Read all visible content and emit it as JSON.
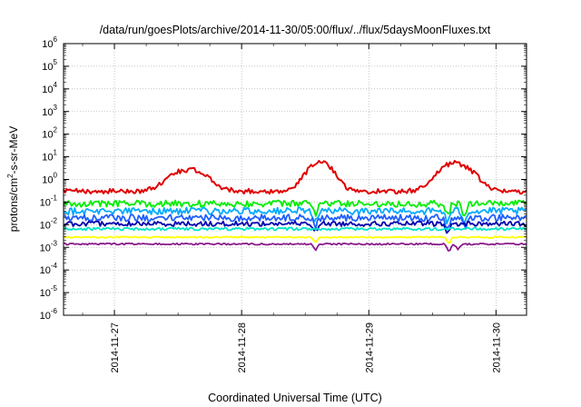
{
  "chart_data": {
    "type": "line",
    "title": "/data/run/goesPlots/archive/2014-11-30/05:00/flux/../flux/5daysMoonFluxes.txt",
    "xlabel": "Coordinated Universal Time (UTC)",
    "ylabel_parts": {
      "pre": "protons/cm",
      "sup": "2",
      "post": "-s-sr-MeV"
    },
    "yscale": "log",
    "ylim_exp": [
      -6,
      6
    ],
    "y_tick_exponents": [
      "-6",
      "-5",
      "-4",
      "-3",
      "-2",
      "-1",
      "0",
      "1",
      "2",
      "3",
      "4",
      "5",
      "6"
    ],
    "y_tick_base": "10",
    "x_range_days": [
      26.6,
      30.24
    ],
    "x_ticks": [
      {
        "day": 27,
        "label": "2014-11-27"
      },
      {
        "day": 28,
        "label": "2014-11-28"
      },
      {
        "day": 29,
        "label": "2014-11-29"
      },
      {
        "day": 30,
        "label": "2014-11-30"
      }
    ],
    "grid": true,
    "legend": "none",
    "series": [
      {
        "color": "#e00000",
        "base": 0.3,
        "noise": 0.22,
        "bumps": [
          [
            27.58,
            2.7,
            0.16
          ],
          [
            28.62,
            5.5,
            0.11
          ],
          [
            29.68,
            5.2,
            0.14
          ]
        ],
        "dips": []
      },
      {
        "color": "#00ee00",
        "base": 0.085,
        "noise": 0.3,
        "bumps": [],
        "dips": [
          [
            28.58,
            0.35
          ],
          [
            29.62,
            0.25
          ],
          [
            29.75,
            0.3
          ]
        ]
      },
      {
        "color": "#00aaff",
        "base": 0.04,
        "noise": 0.32,
        "bumps": [],
        "dips": [
          [
            28.58,
            0.35
          ],
          [
            29.62,
            0.3
          ],
          [
            29.75,
            0.35
          ]
        ]
      },
      {
        "color": "#1f5fff",
        "base": 0.02,
        "noise": 0.3,
        "bumps": [],
        "dips": [
          [
            28.58,
            0.4
          ],
          [
            29.62,
            0.3
          ],
          [
            29.76,
            0.35
          ]
        ]
      },
      {
        "color": "#0000b0",
        "base": 0.011,
        "noise": 0.22,
        "bumps": [],
        "dips": [
          [
            28.58,
            0.45
          ],
          [
            29.62,
            0.35
          ]
        ]
      },
      {
        "color": "#00e5c8",
        "base": 0.0065,
        "noise": 0.12,
        "bumps": [],
        "dips": []
      },
      {
        "color": "#ffff00",
        "base": 0.0028,
        "noise": 0.06,
        "bumps": [],
        "dips": [
          [
            28.58,
            0.6
          ],
          [
            29.63,
            0.55
          ]
        ]
      },
      {
        "color": "#8b1a8b",
        "base": 0.0014,
        "noise": 0.07,
        "bumps": [],
        "dips": [
          [
            28.58,
            0.55
          ],
          [
            29.63,
            0.45
          ],
          [
            29.7,
            0.6
          ]
        ]
      }
    ]
  }
}
